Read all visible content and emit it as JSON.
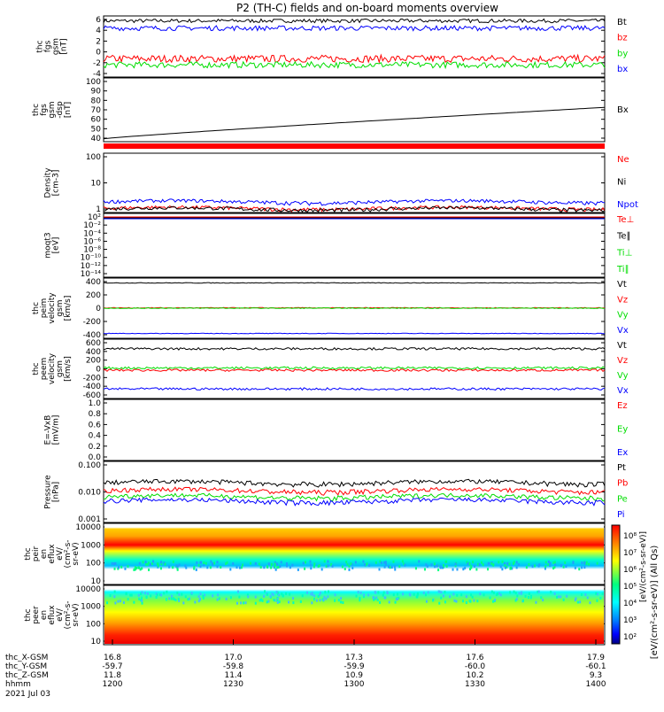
{
  "title": "P2 (TH-C) fields and on-board moments overview",
  "colors": {
    "black": "#000000",
    "red": "#ff0000",
    "green": "#00dd00",
    "blue": "#0000ff"
  },
  "chart_data": [
    {
      "type": "line",
      "ylabel": [
        "thc",
        "fgs",
        "gsm",
        "[nT]"
      ],
      "ylim": [
        -4,
        6
      ],
      "yticks": [
        "6",
        "4",
        "2",
        "0",
        "-2",
        "-4"
      ],
      "series": [
        {
          "name": "Bt",
          "color": "#000000",
          "base": 5.2,
          "amp": 0.3
        },
        {
          "name": "bz",
          "color": "#ff0000",
          "base": -1.0,
          "amp": 0.6
        },
        {
          "name": "by",
          "color": "#00dd00",
          "base": -2.0,
          "amp": 0.5
        },
        {
          "name": "bx",
          "color": "#0000ff",
          "base": 4.0,
          "amp": 0.4
        }
      ]
    },
    {
      "type": "line",
      "ylabel": [
        "thc",
        "fgs",
        "gsm",
        "-dsp",
        "[nT]"
      ],
      "ylim": [
        35,
        100
      ],
      "yticks": [
        "100",
        "90",
        "80",
        "70",
        "60",
        "50",
        "40"
      ],
      "series": [
        {
          "name": "Bx",
          "color": "#000000",
          "start": 38,
          "end": 70
        }
      ]
    },
    {
      "type": "line",
      "ylabel": [
        "Density",
        "[cm-3]"
      ],
      "ylim": [
        1,
        300
      ],
      "log": true,
      "yticks": [
        "100",
        "10",
        "1"
      ],
      "series": [
        {
          "name": "Ne",
          "color": "#ff0000",
          "base": 1.5
        },
        {
          "name": "Ni",
          "color": "#000000",
          "base": 1.4
        },
        {
          "name": "Npot",
          "color": "#0000ff",
          "base": 2.8
        }
      ]
    },
    {
      "type": "line",
      "ylabel": [
        "moqt3",
        "[eV]"
      ],
      "yticks": [
        "10²",
        "10⁻²",
        "10⁻⁴",
        "10⁻⁶",
        "10⁻⁸",
        "10⁻¹⁰",
        "10⁻¹²",
        "10⁻¹⁴"
      ],
      "series": [
        {
          "name": "Te⊥",
          "color": "#ff0000"
        },
        {
          "name": "Te∥",
          "color": "#000000"
        },
        {
          "name": "Ti⊥",
          "color": "#00dd00"
        },
        {
          "name": "Ti∥",
          "color": "#00dd00"
        }
      ]
    },
    {
      "type": "line",
      "ylabel": [
        "thc",
        "peim",
        "velocity",
        "gsm",
        "[km/s]"
      ],
      "ylim": [
        -500,
        500
      ],
      "yticks": [
        "400",
        "200",
        "0",
        "-200",
        "-400"
      ],
      "series": [
        {
          "name": "Vt",
          "color": "#000000",
          "base": 420,
          "amp": 5
        },
        {
          "name": "Vz",
          "color": "#ff0000",
          "base": 5,
          "amp": 6
        },
        {
          "name": "Vy",
          "color": "#00dd00",
          "base": 0,
          "amp": 6
        },
        {
          "name": "Vx",
          "color": "#0000ff",
          "base": -420,
          "amp": 5
        }
      ]
    },
    {
      "type": "line",
      "ylabel": [
        "thc",
        "peem",
        "velocity",
        "gsm",
        "[km/s]"
      ],
      "ylim": [
        -650,
        650
      ],
      "yticks": [
        "600",
        "400",
        "200",
        "0",
        "-200",
        "-400",
        "-600"
      ],
      "series": [
        {
          "name": "Vt",
          "color": "#000000",
          "base": 440,
          "amp": 25
        },
        {
          "name": "Vz",
          "color": "#ff0000",
          "base": -30,
          "amp": 25
        },
        {
          "name": "Vy",
          "color": "#00dd00",
          "base": 20,
          "amp": 25
        },
        {
          "name": "Vx",
          "color": "#0000ff",
          "base": -440,
          "amp": 25
        }
      ]
    },
    {
      "type": "line",
      "ylabel": [
        "E=-VxB",
        "[mV/m]"
      ],
      "ylim": [
        0,
        1
      ],
      "yticks": [
        "1.0",
        "0.8",
        "0.6",
        "0.4",
        "0.2",
        "0.0"
      ],
      "series": [
        {
          "name": "Ez",
          "color": "#ff0000"
        },
        {
          "name": "Ey",
          "color": "#00dd00"
        },
        {
          "name": "Ex",
          "color": "#0000ff"
        }
      ]
    },
    {
      "type": "line",
      "ylabel": [
        "Pressure",
        "[nPa]"
      ],
      "ylim": [
        0.001,
        0.1
      ],
      "log": true,
      "yticks": [
        "0.100",
        "0.010",
        "0.001"
      ],
      "series": [
        {
          "name": "Pt",
          "color": "#000000",
          "base": 0.02
        },
        {
          "name": "Pb",
          "color": "#ff0000",
          "base": 0.011
        },
        {
          "name": "Pe",
          "color": "#00dd00",
          "base": 0.007
        },
        {
          "name": "Pi",
          "color": "#0000ff",
          "base": 0.005
        }
      ]
    },
    {
      "type": "heatmap",
      "ylabel": [
        "thc",
        "peir",
        "en",
        "eflux",
        "eV/",
        "(cm²-s-",
        "sr-eV)"
      ],
      "yticks": [
        "10000",
        "1000",
        "100",
        "10"
      ]
    },
    {
      "type": "heatmap",
      "ylabel": [
        "thc",
        "peer",
        "en",
        "eflux",
        "eV/",
        "(cm²-s-",
        "sr-eV)"
      ],
      "yticks": [
        "10000",
        "1000",
        "100",
        "10"
      ]
    }
  ],
  "colorbar": {
    "ticks": [
      "10⁸",
      "10⁷",
      "10⁶",
      "10⁵",
      "10⁴",
      "10³",
      "10²"
    ],
    "label": "[eV/(cm²-s-sr-eV)] (All Qs)",
    "overlay_label": "[eV/(cm²-s-sr-eV)]"
  },
  "xaxis": {
    "rows": [
      {
        "label": "thc_X-GSM",
        "values": [
          "16.8",
          "17.0",
          "17.3",
          "17.6",
          "17.9"
        ]
      },
      {
        "label": "thc_Y-GSM",
        "values": [
          "-59.7",
          "-59.8",
          "-59.9",
          "-60.0",
          "-60.1"
        ]
      },
      {
        "label": "thc_Z-GSM",
        "values": [
          "11.8",
          "11.4",
          "10.9",
          "10.2",
          "9.3"
        ]
      },
      {
        "label": "hhmm",
        "values": [
          "1200",
          "1230",
          "1300",
          "1330",
          "1400"
        ]
      }
    ],
    "date": "2021 Jul 03"
  }
}
